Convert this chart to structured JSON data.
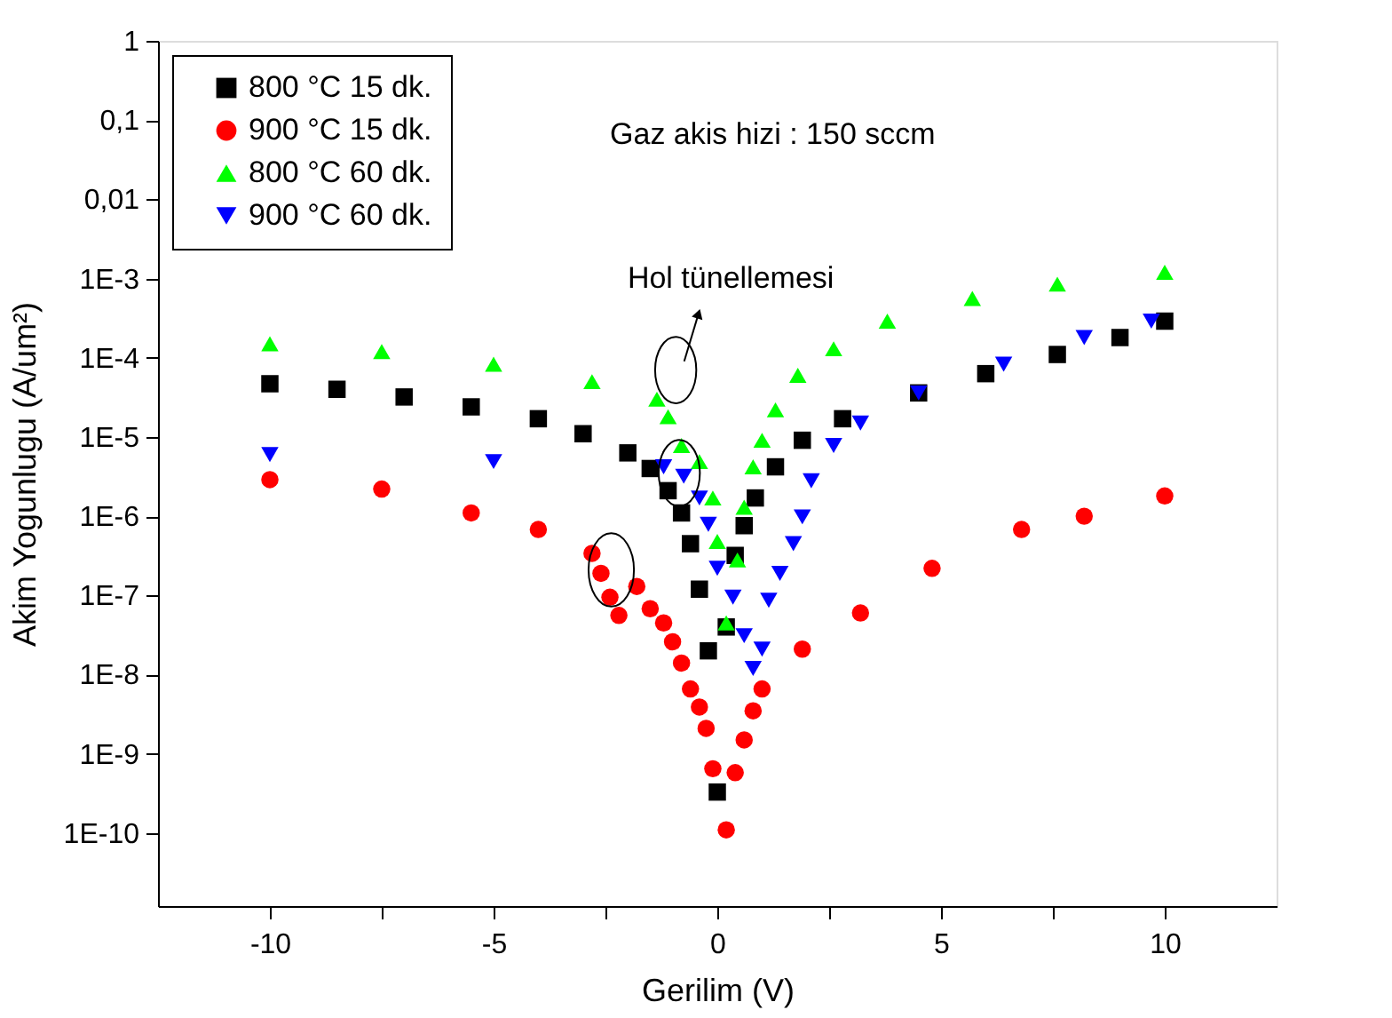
{
  "chart_data": {
    "type": "scatter",
    "xlabel": "Gerilim (V)",
    "ylabel": "Akim Yogunlugu (A/um²)",
    "log": "y",
    "xlim": [
      -12.5,
      12.5
    ],
    "ylim": [
      1.2e-11,
      1
    ],
    "xticks": [
      -10,
      {
        "value": -7.5,
        "label": null
      },
      -5,
      {
        "value": -2.5,
        "label": null
      },
      0,
      {
        "value": 2.5,
        "label": null
      },
      5,
      {
        "value": 7.5,
        "label": null
      },
      10
    ],
    "yticks": [
      {
        "value": 1e-10,
        "label": "1E-10"
      },
      {
        "value": 1e-09,
        "label": "1E-9"
      },
      {
        "value": 1e-08,
        "label": "1E-8"
      },
      {
        "value": 1e-07,
        "label": "1E-7"
      },
      {
        "value": 1e-06,
        "label": "1E-6"
      },
      {
        "value": 1e-05,
        "label": "1E-5"
      },
      {
        "value": 0.0001,
        "label": "1E-4"
      },
      {
        "value": 0.001,
        "label": "1E-3"
      },
      {
        "value": 0.01,
        "label": "0,01"
      },
      {
        "value": 0.1,
        "label": "0,1"
      },
      1
    ],
    "grid": false,
    "legend": "top left",
    "annotations": [
      "Gaz akis hizi : 150 sccm",
      "Hol tünellemesi"
    ],
    "series": [
      {
        "name": "800 °C 15 dk.",
        "color": "#000000",
        "marker": "square",
        "x": [
          -10,
          -8.5,
          -7,
          -5.5,
          -4,
          -3,
          -2,
          -1.5,
          -1.1,
          -0.8,
          -0.6,
          -0.4,
          -0.2,
          0,
          0.2,
          0.4,
          0.6,
          0.85,
          1.3,
          1.9,
          2.8,
          4.5,
          6,
          7.6,
          9,
          10
        ],
        "values": [
          4.7e-05,
          4e-05,
          3.2e-05,
          2.4e-05,
          1.7e-05,
          1.1e-05,
          6.3e-06,
          4e-06,
          2.1e-06,
          1.1e-06,
          4.5e-07,
          1.2e-07,
          2e-08,
          3.3e-10,
          4e-08,
          3.2e-07,
          7.6e-07,
          1.7e-06,
          4.2e-06,
          9.1e-06,
          1.7e-05,
          3.6e-05,
          6.3e-05,
          0.00011,
          0.00018,
          0.00029
        ]
      },
      {
        "name": "900 °C 15 dk.",
        "color": "#ff0000",
        "marker": "circle",
        "x": [
          -10,
          -7.5,
          -5.5,
          -4,
          -2.8,
          -2.6,
          -2.4,
          -2.2,
          -1.8,
          -1.5,
          -1.2,
          -1.0,
          -0.8,
          -0.6,
          -0.4,
          -0.25,
          -0.1,
          0.2,
          0.4,
          0.6,
          0.8,
          1.0,
          1.9,
          3.2,
          4.8,
          6.8,
          8.2,
          10
        ],
        "values": [
          2.9e-06,
          2.2e-06,
          1.1e-06,
          6.8e-07,
          3.4e-07,
          1.9e-07,
          9.5e-08,
          5.6e-08,
          1.3e-07,
          6.8e-08,
          4.5e-08,
          2.6e-08,
          1.4e-08,
          6.6e-09,
          3.9e-09,
          2.1e-09,
          6.5e-10,
          1.1e-10,
          5.8e-10,
          1.5e-09,
          3.5e-09,
          6.6e-09,
          2.1e-08,
          6e-08,
          2.2e-07,
          6.8e-07,
          1e-06,
          1.8e-06
        ]
      },
      {
        "name": "800 °C 60 dk.",
        "color": "#00ff00",
        "marker": "triangle",
        "x": [
          -10,
          -7.5,
          -5,
          -2.8,
          -1.35,
          -1.1,
          -0.8,
          -0.4,
          -0.1,
          0,
          0.2,
          0.45,
          0.6,
          0.8,
          1.0,
          1.3,
          1.8,
          2.6,
          3.8,
          5.7,
          7.6,
          10
        ],
        "values": [
          0.00015,
          0.00012,
          8.3e-05,
          5e-05,
          3e-05,
          1.8e-05,
          7.8e-06,
          4.9e-06,
          1.7e-06,
          4.8e-07,
          4.5e-08,
          2.8e-07,
          1.3e-06,
          4.2e-06,
          9.1e-06,
          2.2e-05,
          6e-05,
          0.00013,
          0.00029,
          0.00056,
          0.00085,
          0.0012
        ]
      },
      {
        "name": "900 °C 60 dk.",
        "color": "#0000ff",
        "marker": "triangle-down",
        "x": [
          -10,
          -5,
          -1.2,
          -0.75,
          -0.4,
          -0.2,
          0,
          0.35,
          0.6,
          0.8,
          1.0,
          1.15,
          1.4,
          1.7,
          1.9,
          2.1,
          2.6,
          3.2,
          4.5,
          6.4,
          8.2,
          9.7
        ],
        "values": [
          6e-06,
          4.9e-06,
          4.2e-06,
          3.2e-06,
          1.7e-06,
          7.9e-07,
          2.2e-07,
          9.5e-08,
          3.1e-08,
          1.2e-08,
          2.1e-08,
          8.7e-08,
          1.9e-07,
          4.5e-07,
          9.8e-07,
          2.8e-06,
          7.8e-06,
          1.5e-05,
          3.6e-05,
          8.3e-05,
          0.00018,
          0.00029
        ]
      }
    ]
  }
}
